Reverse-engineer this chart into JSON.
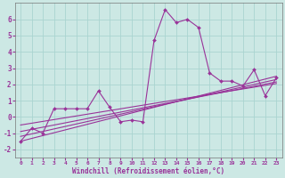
{
  "xlabel": "Windchill (Refroidissement éolien,°C)",
  "bg_color": "#cce8e4",
  "grid_color": "#aad4d0",
  "line_color": "#993399",
  "xlim": [
    -0.5,
    23.5
  ],
  "ylim": [
    -2.5,
    7.0
  ],
  "xticks": [
    0,
    1,
    2,
    3,
    4,
    5,
    6,
    7,
    8,
    9,
    10,
    11,
    12,
    13,
    14,
    15,
    16,
    17,
    18,
    19,
    20,
    21,
    22,
    23
  ],
  "yticks": [
    -2,
    -1,
    0,
    1,
    2,
    3,
    4,
    5,
    6
  ],
  "series": [
    {
      "x": [
        0,
        1,
        2,
        3,
        4,
        5,
        6,
        7,
        8,
        9,
        10,
        11,
        12,
        13,
        14,
        15,
        16,
        17,
        18,
        19,
        20,
        21,
        22,
        23
      ],
      "y": [
        -1.5,
        -0.7,
        -1.0,
        0.5,
        0.5,
        0.5,
        0.5,
        1.6,
        0.6,
        -0.3,
        -0.2,
        -0.3,
        4.7,
        6.6,
        5.8,
        6.0,
        5.5,
        2.7,
        2.2,
        2.2,
        1.9,
        2.9,
        1.3,
        2.4
      ],
      "marker": true
    },
    {
      "x": [
        0,
        23
      ],
      "y": [
        -1.5,
        2.5
      ],
      "marker": false
    },
    {
      "x": [
        0,
        23
      ],
      "y": [
        -1.2,
        2.3
      ],
      "marker": false
    },
    {
      "x": [
        0,
        23
      ],
      "y": [
        -0.9,
        2.15
      ],
      "marker": false
    },
    {
      "x": [
        0,
        23
      ],
      "y": [
        -0.5,
        2.05
      ],
      "marker": false
    }
  ]
}
